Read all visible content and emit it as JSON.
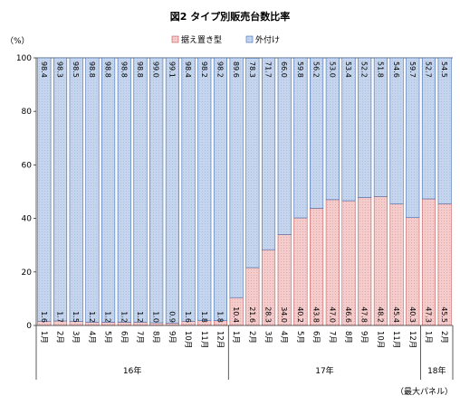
{
  "chart_data": {
    "type": "bar",
    "stacked": true,
    "percent": true,
    "title": "図2 タイプ別販売台数比率",
    "ylabel": "（%）",
    "ylim": [
      0,
      100
    ],
    "yticks": [
      0,
      20,
      40,
      60,
      80,
      100
    ],
    "grid": false,
    "legend_position": "top-right",
    "note": "（最大パネル）",
    "categories": [
      "1月",
      "2月",
      "3月",
      "4月",
      "5月",
      "6月",
      "7月",
      "8月",
      "9月",
      "10月",
      "11月",
      "12月",
      "1月",
      "2月",
      "3月",
      "4月",
      "5月",
      "6月",
      "7月",
      "8月",
      "9月",
      "10月",
      "11月",
      "12月",
      "1月",
      "2月"
    ],
    "groups": [
      {
        "label": "16年",
        "count": 12
      },
      {
        "label": "17年",
        "count": 12
      },
      {
        "label": "18年",
        "count": 2
      }
    ],
    "series": [
      {
        "name": "据え置き型",
        "color": "#f2c6c6",
        "stroke": "#c45a5a",
        "values": [
          1.6,
          1.7,
          1.5,
          1.2,
          1.2,
          1.2,
          1.2,
          1.0,
          0.9,
          1.6,
          1.8,
          1.8,
          10.4,
          21.6,
          28.3,
          34.0,
          40.2,
          43.8,
          47.0,
          46.6,
          47.8,
          48.2,
          45.4,
          40.3,
          47.3,
          45.5
        ]
      },
      {
        "name": "外付け",
        "color": "#c5d5ee",
        "stroke": "#3e6bb0",
        "values": [
          98.4,
          98.3,
          98.5,
          98.8,
          98.8,
          98.8,
          98.8,
          99.0,
          99.1,
          98.4,
          98.2,
          98.2,
          89.6,
          78.3,
          71.7,
          66.0,
          59.8,
          56.2,
          53.0,
          53.4,
          52.2,
          51.8,
          54.6,
          59.7,
          52.7,
          54.5
        ]
      }
    ],
    "labels": {
      "bottom": [
        "1.6",
        "1.7",
        "1.5",
        "1.2",
        "1.2",
        "1.2",
        "1.2",
        "1.0",
        "0.9",
        "1.6",
        "1.8",
        "1.8",
        "10.4",
        "21.6",
        "28.3",
        "34.0",
        "40.2",
        "43.8",
        "47.0",
        "46.6",
        "47.8",
        "48.2",
        "45.4",
        "40.3",
        "47.3",
        "45.5"
      ],
      "top": [
        "98.4",
        "98.3",
        "98.5",
        "98.8",
        "98.8",
        "98.8",
        "98.8",
        "99.0",
        "99.1",
        "98.4",
        "98.2",
        "98.2",
        "89.6",
        "78.3",
        "71.7",
        "66.0",
        "59.8",
        "56.2",
        "53.0",
        "53.4",
        "52.2",
        "51.8",
        "54.6",
        "59.7",
        "52.7",
        "54.5"
      ]
    }
  }
}
